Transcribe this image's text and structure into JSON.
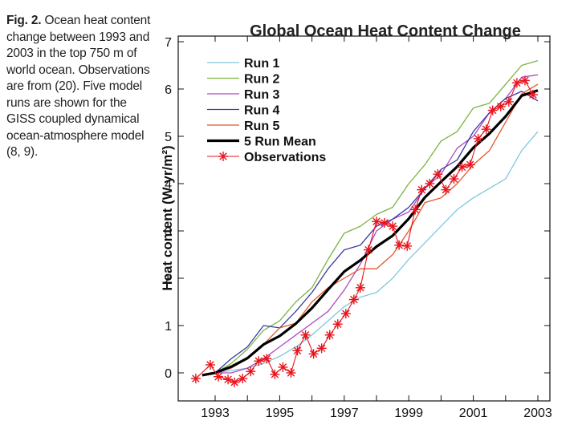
{
  "caption": {
    "fig_label": "Fig. 2.",
    "text": " Ocean heat content change between 1993 and 2003 in the top 750 m of world ocean. Observations are from (20). Five model runs are shown for the GISS coupled dynamical ocean-atmosphere model (8, 9)."
  },
  "chart_data": {
    "type": "line",
    "title": "Global Ocean Heat Content Change",
    "xlabel": "",
    "ylabel": "Heat content (W yr/m²)",
    "xlim": [
      1992.1,
      2003.4
    ],
    "ylim": [
      -0.6,
      7
    ],
    "xticks": [
      1993,
      1995,
      1997,
      1999,
      2001,
      2003
    ],
    "yticks": [
      0,
      1,
      2,
      3,
      4,
      5,
      6,
      7
    ],
    "grid": false,
    "legend_position": "top-left",
    "series": [
      {
        "name": "Run 1",
        "color": "#7fc8dc",
        "width": 1.3,
        "x": [
          1992.6,
          1993.0,
          1993.5,
          1994.0,
          1994.5,
          1995.0,
          1995.5,
          1996.0,
          1996.5,
          1997.0,
          1997.5,
          1998.0,
          1998.5,
          1999.0,
          1999.5,
          2000.0,
          2000.5,
          2001.0,
          2001.5,
          2002.0,
          2002.5,
          2003.0
        ],
        "y": [
          -0.05,
          0.0,
          0.05,
          0.1,
          0.2,
          0.35,
          0.55,
          0.8,
          1.1,
          1.4,
          1.6,
          1.7,
          2.0,
          2.4,
          2.75,
          3.1,
          3.45,
          3.7,
          3.9,
          4.1,
          4.7,
          5.1
        ]
      },
      {
        "name": "Run 2",
        "color": "#7cb342",
        "width": 1.3,
        "x": [
          1992.6,
          1993.0,
          1993.5,
          1994.0,
          1994.5,
          1995.0,
          1995.5,
          1996.0,
          1996.5,
          1997.0,
          1997.5,
          1998.0,
          1998.5,
          1999.0,
          1999.5,
          2000.0,
          2000.5,
          2001.0,
          2001.5,
          2002.0,
          2002.5,
          2003.0
        ],
        "y": [
          -0.05,
          0.0,
          0.2,
          0.5,
          0.9,
          1.1,
          1.5,
          1.8,
          2.4,
          2.95,
          3.1,
          3.35,
          3.5,
          4.0,
          4.4,
          4.9,
          5.1,
          5.6,
          5.7,
          6.1,
          6.5,
          6.6
        ]
      },
      {
        "name": "Run 3",
        "color": "#b04ac0",
        "width": 1.3,
        "x": [
          1992.6,
          1993.0,
          1993.5,
          1994.0,
          1994.5,
          1995.0,
          1995.5,
          1996.0,
          1996.5,
          1997.0,
          1997.5,
          1998.0,
          1998.5,
          1999.0,
          1999.5,
          2000.0,
          2000.5,
          2001.0,
          2001.5,
          2002.0,
          2002.5,
          2003.0
        ],
        "y": [
          -0.05,
          0.0,
          0.0,
          0.1,
          0.3,
          0.55,
          0.8,
          1.05,
          1.3,
          1.75,
          2.3,
          3.0,
          3.25,
          3.4,
          3.9,
          4.2,
          4.75,
          5.0,
          5.5,
          5.8,
          6.25,
          6.3
        ]
      },
      {
        "name": "Run 4",
        "color": "#3a3aa0",
        "width": 1.3,
        "x": [
          1992.6,
          1993.0,
          1993.5,
          1994.0,
          1994.5,
          1995.0,
          1995.5,
          1996.0,
          1996.5,
          1997.0,
          1997.5,
          1998.0,
          1998.5,
          1999.0,
          1999.5,
          2000.0,
          2000.5,
          2001.0,
          2001.5,
          2002.0,
          2002.5,
          2003.0
        ],
        "y": [
          -0.05,
          0.0,
          0.3,
          0.55,
          1.0,
          0.95,
          1.3,
          1.7,
          2.2,
          2.6,
          2.7,
          3.1,
          3.25,
          3.5,
          3.9,
          4.3,
          4.5,
          5.1,
          5.5,
          5.8,
          5.95,
          5.75
        ]
      },
      {
        "name": "Run 5",
        "color": "#e2592a",
        "width": 1.3,
        "x": [
          1992.6,
          1993.0,
          1993.5,
          1994.0,
          1994.5,
          1995.0,
          1995.5,
          1996.0,
          1996.5,
          1997.0,
          1997.5,
          1998.0,
          1998.5,
          1999.0,
          1999.5,
          2000.0,
          2000.5,
          2001.0,
          2001.5,
          2002.0,
          2002.5,
          2003.0
        ],
        "y": [
          -0.05,
          0.0,
          0.1,
          0.3,
          0.6,
          0.95,
          1.05,
          1.5,
          1.8,
          2.0,
          2.2,
          2.2,
          2.5,
          3.0,
          3.6,
          3.7,
          4.0,
          4.4,
          4.7,
          5.3,
          5.9,
          6.1
        ]
      },
      {
        "name": "5 Run Mean",
        "color": "#000000",
        "width": 3.2,
        "x": [
          1992.6,
          1993.0,
          1993.5,
          1994.0,
          1994.5,
          1995.0,
          1995.5,
          1996.0,
          1996.5,
          1997.0,
          1997.5,
          1998.0,
          1998.5,
          1999.0,
          1999.5,
          2000.0,
          2000.5,
          2001.0,
          2001.5,
          2002.0,
          2002.5,
          2003.0
        ],
        "y": [
          -0.05,
          0.0,
          0.13,
          0.31,
          0.6,
          0.78,
          1.04,
          1.37,
          1.76,
          2.14,
          2.38,
          2.67,
          2.9,
          3.26,
          3.71,
          4.04,
          4.36,
          4.76,
          5.06,
          5.42,
          5.86,
          5.97
        ]
      },
      {
        "name": "Observations",
        "color": "#e8141c",
        "width": 1.1,
        "marker": "asterisk",
        "x": [
          1992.4,
          1992.85,
          1993.1,
          1993.4,
          1993.6,
          1993.85,
          1994.1,
          1994.35,
          1994.6,
          1994.85,
          1995.1,
          1995.35,
          1995.55,
          1995.8,
          1996.05,
          1996.3,
          1996.55,
          1996.8,
          1997.05,
          1997.3,
          1997.5,
          1997.75,
          1998.0,
          1998.25,
          1998.5,
          1998.7,
          1998.95,
          1999.2,
          1999.4,
          1999.65,
          1999.9,
          2000.15,
          2000.4,
          2000.65,
          2000.9,
          2001.15,
          2001.4,
          2001.6,
          2001.85,
          2002.1,
          2002.35,
          2002.6,
          2002.85
        ],
        "y": [
          -0.12,
          0.17,
          -0.08,
          -0.14,
          -0.2,
          -0.12,
          0.03,
          0.25,
          0.3,
          -0.03,
          0.12,
          0.0,
          0.47,
          0.8,
          0.4,
          0.52,
          0.8,
          1.03,
          1.25,
          1.55,
          1.8,
          2.6,
          3.2,
          3.17,
          3.1,
          2.7,
          2.68,
          3.45,
          3.87,
          4.0,
          4.2,
          3.87,
          4.1,
          4.35,
          4.4,
          4.95,
          5.15,
          5.55,
          5.63,
          5.73,
          6.13,
          6.18,
          5.88
        ]
      }
    ]
  }
}
